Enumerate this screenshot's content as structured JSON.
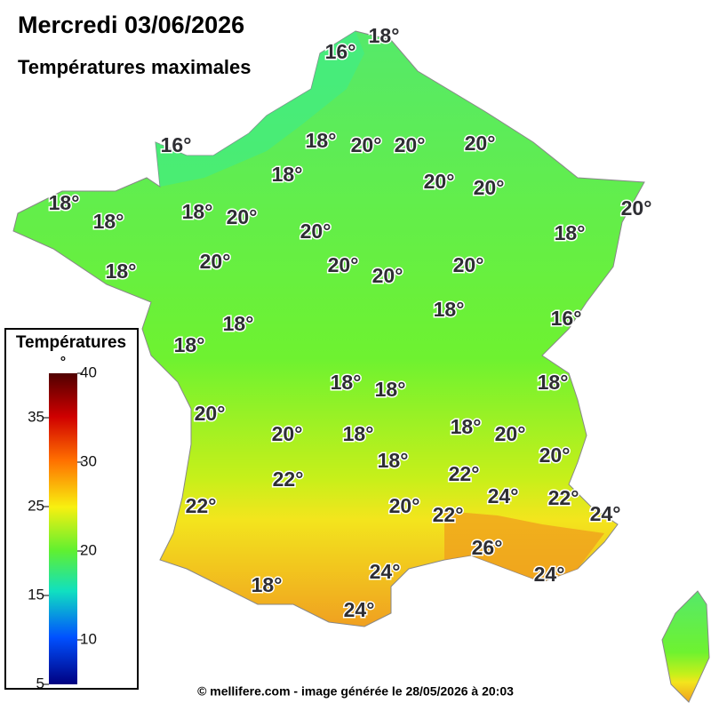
{
  "header": {
    "title": "Mercredi 03/06/2026",
    "subtitle": "Températures maximales"
  },
  "legend": {
    "title": "Températures",
    "unit": "°",
    "ticks": [
      5,
      10,
      15,
      20,
      25,
      30,
      35,
      40
    ],
    "range": [
      5,
      40
    ]
  },
  "isotherm_labels": [
    "18°",
    "16°",
    "16°",
    "18°",
    "20°",
    "20°",
    "20°",
    "20°",
    "20°",
    "18°",
    "18°",
    "18°",
    "18°",
    "20°",
    "20°",
    "18°",
    "20°",
    "20°",
    "18°",
    "20°",
    "20°",
    "20°",
    "18°",
    "16°",
    "18°",
    "18°",
    "18°",
    "18°",
    "18°",
    "20°",
    "20°",
    "18°",
    "18°",
    "20°",
    "20°",
    "18°",
    "22°",
    "22°",
    "24°",
    "22°",
    "22°",
    "20°",
    "22°",
    "24°",
    "26°",
    "24°",
    "24°",
    "18°",
    "24°"
  ],
  "footer": "© mellifere.com - image générée le 28/05/2026 à 20:03"
}
